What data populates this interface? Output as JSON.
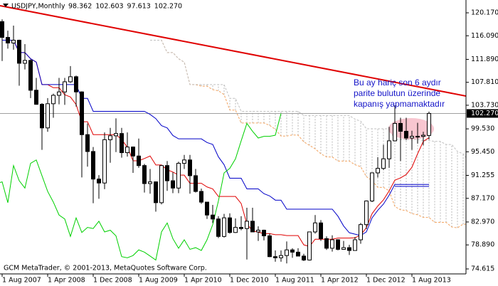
{
  "chart_data": {
    "type": "ichimoku",
    "title": "USDJPY,Monthly",
    "header_values": [
      {
        "value": 98.362,
        "label": "98.362"
      },
      {
        "value": 102.603,
        "label": "102.603"
      },
      {
        "value": 97.613,
        "label": "97.613"
      },
      {
        "value": 102.27,
        "label": "102.270"
      }
    ],
    "current_price": {
      "value": 102.27,
      "label": "102.270"
    },
    "annotation": [
      "Bu ay hariç son 6 aydır",
      "parite bulutun üzerinde",
      "kapanış yapmamaktadır"
    ],
    "footer": "GCM MetaTrader, © 2001-2013, MetaQuotes Software Corp.",
    "categories": [
      "1 Aug 2007",
      null,
      null,
      null,
      null,
      null,
      null,
      null,
      "1 Apr 2008",
      null,
      null,
      null,
      null,
      null,
      null,
      null,
      "1 Dec 2008",
      null,
      null,
      null,
      null,
      null,
      null,
      null,
      "1 Aug 2009",
      null,
      null,
      null,
      null,
      null,
      null,
      null,
      "1 Apr 2010",
      null,
      null,
      null,
      null,
      null,
      null,
      null,
      "1 Dec 2010",
      null,
      null,
      null,
      null,
      null,
      null,
      null,
      "1 Aug 2011",
      null,
      null,
      null,
      null,
      null,
      null,
      null,
      "1 Apr 2012",
      null,
      null,
      null,
      null,
      null,
      null,
      null,
      "1 Dec 2012",
      null,
      null,
      null,
      null,
      null,
      null,
      null,
      "1 Aug 2013",
      null,
      null,
      null
    ],
    "open": [
      118.6,
      115.8,
      114.8,
      115.3,
      111.2,
      111.7,
      106.4,
      103.9,
      99.7,
      104.0,
      105.5,
      106.1,
      107.9,
      108.8,
      106.1,
      98.5,
      95.5,
      90.6,
      89.9,
      97.6,
      98.3,
      98.7,
      95.3,
      96.3,
      94.7,
      93.0,
      89.8,
      90.1,
      86.4,
      93.0,
      90.3,
      89.0,
      93.4,
      94.0,
      91.2,
      88.4,
      86.5,
      84.2,
      83.5,
      80.4,
      83.7,
      81.1,
      82.0,
      81.8,
      83.1,
      81.2,
      81.5,
      80.5,
      76.8,
      76.6,
      77.0,
      78.0,
      77.6,
      76.9,
      76.2,
      81.2,
      82.8,
      80.0,
      78.3,
      79.8,
      78.1,
      78.4,
      77.9,
      79.8,
      82.5,
      86.7,
      91.7,
      92.5,
      94.2,
      97.4,
      100.5,
      99.1,
      97.9,
      98.2,
      98.2,
      98.362
    ],
    "high": [
      119.0,
      117.0,
      117.9,
      115.4,
      114.6,
      111.9,
      108.6,
      104.1,
      105.0,
      105.8,
      108.6,
      108.6,
      110.7,
      109.0,
      106.2,
      100.5,
      96.3,
      91.3,
      98.9,
      99.7,
      101.4,
      99.7,
      98.9,
      96.4,
      97.8,
      93.3,
      92.4,
      90.2,
      93.1,
      93.8,
      91.8,
      93.7,
      94.9,
      94.9,
      92.4,
      88.9,
      86.5,
      86.0,
      84.0,
      84.4,
      84.5,
      83.6,
      84.0,
      85.5,
      85.5,
      82.2,
      81.6,
      80.9,
      77.9,
      77.9,
      79.5,
      78.3,
      78.3,
      77.3,
      81.2,
      84.2,
      83.3,
      80.4,
      80.6,
      79.9,
      79.6,
      78.9,
      80.3,
      82.8,
      86.8,
      91.8,
      94.5,
      96.7,
      99.9,
      103.7,
      101.5,
      101.5,
      99.2,
      100.6,
      99.0,
      102.603
    ],
    "low": [
      111.6,
      113.8,
      113.6,
      107.2,
      110.1,
      105.0,
      103.8,
      95.8,
      99.0,
      101.5,
      103.9,
      103.8,
      107.7,
      103.5,
      90.9,
      92.8,
      86.3,
      87.1,
      88.8,
      93.5,
      95.4,
      94.4,
      94.6,
      91.7,
      92.6,
      88.2,
      88.0,
      84.8,
      86.1,
      88.5,
      88.1,
      88.1,
      92.4,
      88.0,
      88.2,
      86.2,
      83.5,
      82.8,
      80.1,
      80.2,
      80.9,
      81.0,
      81.5,
      76.3,
      81.2,
      79.6,
      79.7,
      76.7,
      75.9,
      75.9,
      75.6,
      76.6,
      76.9,
      76.0,
      76.1,
      80.9,
      79.6,
      78.0,
      77.7,
      77.9,
      78.0,
      77.1,
      77.9,
      79.1,
      81.7,
      86.5,
      90.9,
      92.2,
      92.6,
      97.3,
      93.8,
      97.5,
      95.8,
      96.9,
      96.6,
      97.613
    ],
    "close": [
      115.8,
      114.8,
      115.3,
      111.2,
      111.7,
      106.4,
      103.9,
      99.7,
      104.0,
      105.5,
      106.1,
      107.9,
      108.8,
      106.1,
      98.5,
      95.5,
      90.6,
      89.9,
      97.6,
      98.3,
      98.7,
      95.3,
      96.3,
      94.7,
      93.0,
      89.8,
      90.1,
      86.4,
      93.0,
      90.3,
      89.0,
      93.4,
      94.0,
      91.2,
      88.4,
      86.5,
      84.2,
      83.5,
      80.4,
      83.7,
      81.1,
      82.0,
      81.8,
      83.1,
      81.2,
      81.5,
      80.5,
      76.8,
      76.6,
      77.0,
      78.0,
      77.6,
      76.9,
      76.2,
      81.2,
      82.8,
      80.0,
      78.3,
      79.8,
      78.1,
      78.4,
      77.9,
      79.8,
      82.5,
      86.7,
      91.7,
      92.5,
      94.2,
      97.4,
      100.5,
      99.1,
      97.9,
      98.2,
      98.2,
      98.4,
      102.27
    ],
    "ylim": [
      73.73,
      122.45
    ],
    "yticks": [
      {
        "value": 120.17,
        "label": "120.170"
      },
      {
        "value": 116.09,
        "label": "116.090"
      },
      {
        "value": 111.89,
        "label": "111.890"
      },
      {
        "value": 107.81,
        "label": "107.810"
      },
      {
        "value": 103.73,
        "label": "103.730"
      },
      {
        "value": 99.53,
        "label": "99.530"
      },
      {
        "value": 95.45,
        "label": "95.450"
      },
      {
        "value": 91.255,
        "label": "91.255"
      },
      {
        "value": 87.17,
        "label": "87.170"
      },
      {
        "value": 82.97,
        "label": "82.970"
      },
      {
        "value": 78.89,
        "label": "78.890"
      },
      {
        "value": 74.615,
        "label": "74.615"
      }
    ],
    "colors": {
      "tenkan": "#e00000",
      "kijun": "#0000c8",
      "chikou": "#00d000",
      "span_a": "#f4a460",
      "span_b": "#c0c0c0",
      "cloud_up": "#f0a0a0",
      "cloud_down": "#b8b8b8",
      "bull": "#ffffff",
      "bear": "#000000"
    }
  }
}
